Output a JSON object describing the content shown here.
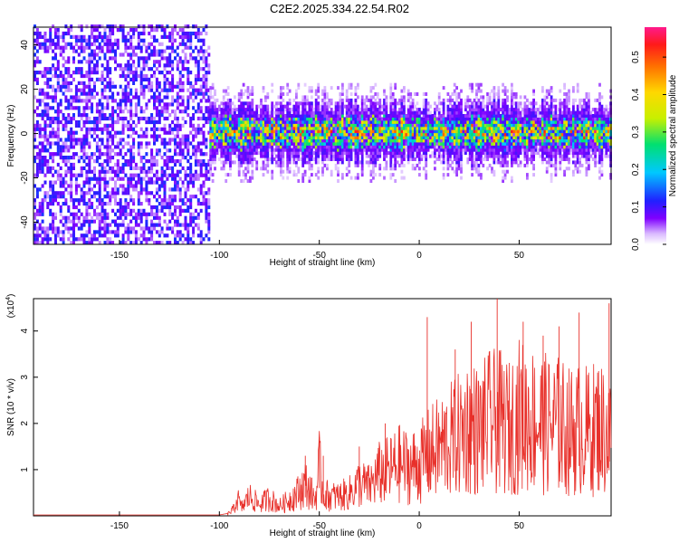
{
  "title": "C2E2.2025.334.22.54.R02",
  "chart_data": [
    {
      "type": "heatmap",
      "name": "spectrogram",
      "xlabel": "Height of straight line (km)",
      "ylabel": "Frequency (Hz)",
      "xlim": [
        -193,
        96
      ],
      "ylim": [
        -50,
        48
      ],
      "xticks": [
        -150,
        -100,
        -50,
        0,
        50
      ],
      "xtick_labels": [
        "-150",
        "-100",
        "-50",
        "0",
        "50"
      ],
      "yticks": [
        -40,
        -20,
        0,
        20,
        40
      ],
      "ytick_labels": [
        "-40",
        "-20",
        "0",
        "20",
        "40"
      ],
      "colorbar": {
        "label": "Normalized spectral amplitude",
        "range": [
          0,
          0.58
        ],
        "ticks": [
          0.0,
          0.1,
          0.2,
          0.3,
          0.4,
          0.5
        ],
        "tick_labels": [
          "0.0",
          "0.1",
          "0.2",
          "0.3",
          "0.4",
          "0.5"
        ]
      },
      "regions": [
        {
          "x_range": [
            -193,
            -105
          ],
          "y_range": [
            -50,
            48
          ],
          "amplitude_range": [
            0.02,
            0.08
          ],
          "pattern": "broadband noise"
        },
        {
          "x_range": [
            -105,
            96
          ],
          "center_freq": 0,
          "bandwidth_hz": 10,
          "amplitude_range": [
            0.05,
            0.58
          ],
          "pattern": "narrow band centered at 0 Hz"
        }
      ]
    },
    {
      "type": "line",
      "name": "snr",
      "xlabel": "Height of straight line (km)",
      "ylabel": "SNR (10 * v/v)",
      "multiplier_label": "(x10",
      "multiplier_exp": "4",
      "multiplier_close": ")",
      "xlim": [
        -193,
        96
      ],
      "ylim": [
        0,
        4.7
      ],
      "xticks": [
        -150,
        -100,
        -50,
        0,
        50
      ],
      "xtick_labels": [
        "-150",
        "-100",
        "-50",
        "0",
        "50"
      ],
      "yticks": [
        1,
        2,
        3,
        4
      ],
      "ytick_labels": [
        "1",
        "2",
        "3",
        "4"
      ],
      "color": "#e8302a",
      "points": [
        [
          -193,
          0.02
        ],
        [
          -100,
          0.02
        ],
        [
          -96,
          0.05
        ],
        [
          -93,
          0.2
        ],
        [
          -91,
          0.55
        ],
        [
          -89,
          0.25
        ],
        [
          -85,
          0.6
        ],
        [
          -80,
          0.35
        ],
        [
          -75,
          0.55
        ],
        [
          -70,
          0.3
        ],
        [
          -65,
          0.5
        ],
        [
          -60,
          0.75
        ],
        [
          -57,
          1.0
        ],
        [
          -52,
          0.5
        ],
        [
          -50,
          1.5
        ],
        [
          -48,
          0.7
        ],
        [
          -45,
          0.6
        ],
        [
          -40,
          0.6
        ],
        [
          -35,
          0.7
        ],
        [
          -30,
          1.0
        ],
        [
          -25,
          0.9
        ],
        [
          -20,
          1.3
        ],
        [
          -15,
          1.4
        ],
        [
          -10,
          1.6
        ],
        [
          -5,
          1.5
        ],
        [
          0,
          1.6
        ],
        [
          5,
          1.9
        ],
        [
          10,
          2.1
        ],
        [
          15,
          2.3
        ],
        [
          20,
          2.5
        ],
        [
          25,
          2.8
        ],
        [
          30,
          2.6
        ],
        [
          35,
          2.9
        ],
        [
          40,
          2.9
        ],
        [
          45,
          2.7
        ],
        [
          50,
          3.1
        ],
        [
          55,
          3.0
        ],
        [
          60,
          2.9
        ],
        [
          65,
          2.8
        ],
        [
          70,
          2.8
        ],
        [
          75,
          2.6
        ],
        [
          80,
          2.7
        ],
        [
          85,
          2.6
        ],
        [
          90,
          2.8
        ],
        [
          96,
          2.4
        ]
      ],
      "spikes": [
        [
          -57,
          1.3
        ],
        [
          -50,
          1.7
        ],
        [
          -48,
          1.3
        ],
        [
          -30,
          1.5
        ],
        [
          -17,
          2.0
        ],
        [
          4,
          4.3
        ],
        [
          18,
          3.6
        ],
        [
          26,
          4.2
        ],
        [
          39,
          4.7
        ],
        [
          52,
          4.2
        ],
        [
          62,
          3.9
        ],
        [
          70,
          4.1
        ],
        [
          80,
          4.4
        ],
        [
          95,
          4.6
        ]
      ]
    }
  ]
}
